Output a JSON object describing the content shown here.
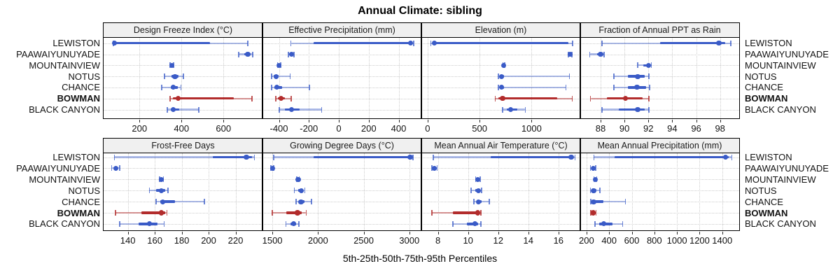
{
  "title": "Annual Climate: sibling",
  "xlabel": "5th-25th-50th-75th-95th Percentiles",
  "colors": {
    "series": "#3a5bc7",
    "series_light": "rgba(58,91,199,0.42)",
    "series_cap": "rgba(58,91,199,0.75)",
    "highlight": "#b22c2c",
    "highlight_light": "rgba(178,44,44,0.5)",
    "highlight_cap": "rgba(178,44,44,0.8)",
    "strip_bg": "#f0f0f0",
    "grid": "#cccccc",
    "border": "#000000"
  },
  "chart_data": {
    "type": "dotplot-percentile-trellis",
    "percentiles": [
      5,
      25,
      50,
      75,
      95
    ],
    "locations": [
      "LEWISTON",
      "PAAWAIYUNUYADE",
      "MOUNTAINVIEW",
      "NOTUS",
      "CHANCE",
      "BOWMAN",
      "BLACK CANYON"
    ],
    "highlighted": "BOWMAN",
    "legend_note": "5th-25th-50th-75th-95th Percentiles",
    "panels": [
      {
        "title": "Design Freeze Index (°C)",
        "row": 0,
        "col": 0,
        "xlim": [
          29,
          786
        ],
        "ticks": [
          200,
          400,
          600
        ],
        "values": [
          [
            75,
            80,
            80,
            535,
            715
          ],
          [
            672,
            700,
            716,
            729,
            739
          ],
          [
            346,
            352,
            355,
            359,
            362
          ],
          [
            319,
            352,
            369,
            385,
            409
          ],
          [
            306,
            348,
            361,
            382,
            397
          ],
          [
            346,
            360,
            385,
            650,
            737
          ],
          [
            333,
            350,
            362,
            390,
            482
          ]
        ]
      },
      {
        "title": "Effective Precipitation (mm)",
        "row": 0,
        "col": 1,
        "xlim": [
          -510,
          552
        ],
        "ticks": [
          -400,
          -200,
          0,
          200,
          400
        ],
        "values": [
          [
            -320,
            -168,
            478,
            488,
            500
          ],
          [
            -336,
            -325,
            -317,
            -307,
            -298
          ],
          [
            -410,
            -404,
            -399,
            -393,
            -387
          ],
          [
            -450,
            -435,
            -419,
            -400,
            -325
          ],
          [
            -450,
            -432,
            -414,
            -380,
            -195
          ],
          [
            -422,
            -405,
            -385,
            -360,
            -317
          ],
          [
            -399,
            -360,
            -317,
            -260,
            -114
          ]
        ]
      },
      {
        "title": "Elevation (m)",
        "row": 0,
        "col": 2,
        "xlim": [
          -60,
          1469
        ],
        "ticks": [
          0,
          500,
          1000
        ],
        "values": [
          [
            30,
            63,
            63,
            1356,
            1393
          ],
          [
            1355,
            1365,
            1374,
            1382,
            1390
          ],
          [
            725,
            729,
            732,
            736,
            740
          ],
          [
            680,
            698,
            714,
            735,
            1365
          ],
          [
            680,
            698,
            714,
            735,
            1332
          ],
          [
            650,
            680,
            721,
            1250,
            1392
          ],
          [
            720,
            760,
            800,
            860,
            940
          ]
        ]
      },
      {
        "title": "Fraction of Annual PPT as Rain",
        "row": 0,
        "col": 3,
        "xlim": [
          86.3,
          99.6
        ],
        "ticks": [
          88,
          90,
          92,
          94,
          96,
          98
        ],
        "values": [
          [
            88.1,
            93.0,
            97.9,
            98.4,
            98.9
          ],
          [
            87.1,
            87.7,
            88.0,
            88.2,
            88.3
          ],
          [
            91.1,
            91.6,
            92.0,
            92.15,
            92.25
          ],
          [
            89.1,
            90.3,
            91.1,
            91.7,
            92.05
          ],
          [
            89.1,
            90.3,
            91.05,
            91.8,
            92.1
          ],
          [
            87.15,
            88.5,
            90.1,
            91.5,
            92.05
          ],
          [
            88.1,
            89.5,
            91.1,
            91.7,
            92.05
          ]
        ]
      },
      {
        "title": "Frost-Free Days",
        "row": 1,
        "col": 0,
        "xlim": [
          122,
          240
        ],
        "ticks": [
          140,
          160,
          180,
          200,
          220
        ],
        "values": [
          [
            130,
            203,
            228,
            232,
            234
          ],
          [
            128,
            130,
            131,
            132.5,
            134
          ],
          [
            163.5,
            164.5,
            165,
            165.8,
            166.5
          ],
          [
            156,
            161,
            165,
            167.5,
            170
          ],
          [
            161,
            164,
            166,
            175,
            197
          ],
          [
            131,
            150,
            165,
            167.5,
            169
          ],
          [
            134,
            148,
            156,
            162,
            167
          ]
        ]
      },
      {
        "title": "Growing Degree Days (°C)",
        "row": 1,
        "col": 1,
        "xlim": [
          1392,
          3132
        ],
        "ticks": [
          1500,
          2000,
          2500,
          3000
        ],
        "values": [
          [
            1513,
            1950,
            3010,
            3025,
            3040
          ],
          [
            1485,
            1495,
            1502,
            1508,
            1515
          ],
          [
            1770,
            1778,
            1783,
            1790,
            1795
          ],
          [
            1740,
            1780,
            1816,
            1835,
            1855
          ],
          [
            1758,
            1790,
            1814,
            1855,
            1930
          ],
          [
            1500,
            1650,
            1776,
            1820,
            1870
          ],
          [
            1650,
            1700,
            1732,
            1760,
            1790
          ]
        ]
      },
      {
        "title": "Mean Annual Air Temperature (°C)",
        "row": 1,
        "col": 2,
        "xlim": [
          6.9,
          17.45
        ],
        "ticks": [
          8,
          10,
          12,
          14,
          16
        ],
        "values": [
          [
            7.7,
            11.5,
            16.85,
            17.0,
            17.1
          ],
          [
            7.6,
            7.7,
            7.75,
            7.85,
            7.95
          ],
          [
            10.5,
            10.6,
            10.65,
            10.75,
            10.8
          ],
          [
            10.2,
            10.5,
            10.7,
            10.8,
            10.9
          ],
          [
            10.4,
            10.55,
            10.7,
            10.9,
            11.4
          ],
          [
            7.6,
            9.0,
            10.65,
            10.75,
            10.85
          ],
          [
            9.0,
            9.9,
            10.45,
            10.65,
            10.85
          ]
        ]
      },
      {
        "title": "Mean Annual Precipitation (mm)",
        "row": 1,
        "col": 3,
        "xlim": [
          145,
          1550
        ],
        "ticks": [
          200,
          400,
          600,
          800,
          1000,
          1200,
          1400
        ],
        "values": [
          [
            265,
            450,
            1430,
            1455,
            1485
          ],
          [
            235,
            248,
            258,
            270,
            283
          ],
          [
            265,
            272,
            277,
            284,
            290
          ],
          [
            235,
            250,
            263,
            290,
            320
          ],
          [
            240,
            253,
            263,
            350,
            545
          ],
          [
            240,
            250,
            258,
            270,
            285
          ],
          [
            273,
            310,
            350,
            430,
            520
          ]
        ]
      }
    ]
  }
}
